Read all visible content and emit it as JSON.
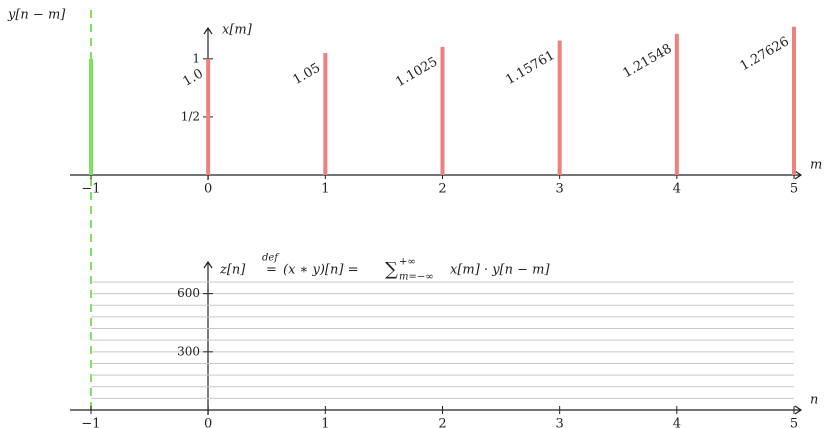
{
  "chart_data": [
    {
      "type": "bar",
      "xlabel": "m",
      "xlim": [
        -1,
        5
      ],
      "xticks": [
        {
          "value": -1,
          "label": "−1"
        },
        0,
        1,
        2,
        3,
        4,
        5
      ],
      "ylim": [
        0,
        1.3
      ],
      "yticks": [
        {
          "value": 0.5,
          "label": "1/2"
        },
        1
      ],
      "series": [
        {
          "name": "x[m]",
          "color": "#f08080",
          "x": [
            0,
            1,
            2,
            3,
            4,
            5
          ],
          "values": [
            1.0,
            1.05,
            1.1025,
            1.15761,
            1.21548,
            1.27626
          ],
          "value_labels": [
            "1.0",
            "1.05",
            "1.1025",
            "1.15761",
            "1.21548",
            "1.27626"
          ]
        },
        {
          "name": "y[n − m]",
          "color": "#80e060",
          "x": [
            -1
          ],
          "values": [
            1
          ]
        }
      ]
    },
    {
      "type": "line",
      "xlabel": "n",
      "ylabel_parts": [
        "z[n]",
        "def",
        "=",
        "(x ∗ y)[n] =",
        "∑",
        "+∞",
        "m=−∞",
        "x[m] · y[n − m]"
      ],
      "xlim": [
        -1,
        5
      ],
      "xticks": [
        {
          "value": -1,
          "label": "−1"
        },
        0,
        1,
        2,
        3,
        4,
        5
      ],
      "ylim": [
        0,
        660
      ],
      "yticks": [
        300,
        600
      ],
      "ygrid": [
        60,
        120,
        180,
        240,
        300,
        360,
        420,
        480,
        540,
        600,
        660
      ],
      "grid": true,
      "series": []
    }
  ]
}
